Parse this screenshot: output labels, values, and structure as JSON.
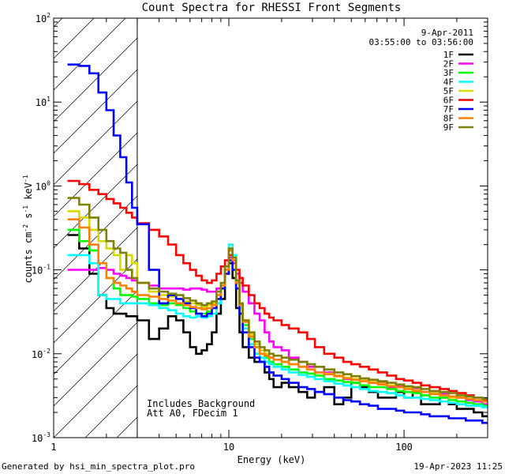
{
  "chart_data": {
    "type": "line",
    "title": "Count Spectra for RHESSI Front Segments",
    "xlabel": "Energy (keV)",
    "ylabel_parts": [
      "counts cm",
      "-2",
      " s",
      "-1",
      " keV",
      "-1"
    ],
    "xscale": "log",
    "yscale": "log",
    "xlim": [
      1,
      300
    ],
    "ylim": [
      0.001,
      100
    ],
    "x_ticks": [
      {
        "value": 1,
        "label": "1"
      },
      {
        "value": 10,
        "label": "10"
      },
      {
        "value": 100,
        "label": "100"
      }
    ],
    "y_ticks": [
      {
        "value": 0.001,
        "base": "10",
        "exp": "-3"
      },
      {
        "value": 0.01,
        "base": "10",
        "exp": "-2"
      },
      {
        "value": 0.1,
        "base": "10",
        "exp": "-1"
      },
      {
        "value": 1,
        "base": "10",
        "exp": "0"
      },
      {
        "value": 10,
        "base": "10",
        "exp": "1"
      },
      {
        "value": 100,
        "base": "10",
        "exp": "2"
      }
    ],
    "date": "9-Apr-2011",
    "time_range": "03:55:00 to 03:56:00",
    "shaded_region": [
      1,
      3
    ],
    "annotations": [
      "Includes Background",
      "Att A0, FDecim 1"
    ],
    "footer_left": "Generated by hsi_min_spectra_plot.pro",
    "footer_right": "19-Apr-2023 11:25",
    "x": [
      1.2,
      1.4,
      1.6,
      1.8,
      2.0,
      2.2,
      2.4,
      2.6,
      2.8,
      3.0,
      3.5,
      4.0,
      4.5,
      5.0,
      5.5,
      6.0,
      6.5,
      7.0,
      7.5,
      8.0,
      8.5,
      9.0,
      9.5,
      10.0,
      10.5,
      11.0,
      11.5,
      12.0,
      13.0,
      14.0,
      15.0,
      16.0,
      17.0,
      18.0,
      20.0,
      22.0,
      25.0,
      28.0,
      31.0,
      35.0,
      40.0,
      45.0,
      50.0,
      56.0,
      63.0,
      71.0,
      80.0,
      90.0,
      100.0,
      112.0,
      125.0,
      140.0,
      160.0,
      180.0,
      200.0,
      225.0,
      250.0,
      280.0
    ],
    "series": [
      {
        "name": "1F",
        "color": "#000000",
        "values": [
          0.26,
          0.18,
          0.09,
          0.05,
          0.035,
          0.03,
          0.03,
          0.028,
          0.028,
          0.025,
          0.015,
          0.02,
          0.028,
          0.025,
          0.018,
          0.012,
          0.01,
          0.011,
          0.013,
          0.018,
          0.03,
          0.045,
          0.09,
          0.12,
          0.08,
          0.035,
          0.018,
          0.012,
          0.009,
          0.008,
          0.008,
          0.006,
          0.005,
          0.004,
          0.0045,
          0.004,
          0.0035,
          0.003,
          0.0035,
          0.004,
          0.0025,
          0.003,
          0.0045,
          0.004,
          0.0035,
          0.003,
          0.003,
          0.0035,
          0.003,
          0.0035,
          0.0025,
          0.0025,
          0.003,
          0.0025,
          0.0022,
          0.0022,
          0.002,
          0.0018
        ]
      },
      {
        "name": "2F",
        "color": "#ff00ff",
        "values": [
          0.1,
          0.1,
          0.1,
          0.105,
          0.1,
          0.09,
          0.085,
          0.08,
          0.075,
          0.07,
          0.065,
          0.06,
          0.06,
          0.06,
          0.058,
          0.06,
          0.06,
          0.058,
          0.055,
          0.055,
          0.06,
          0.065,
          0.09,
          0.14,
          0.12,
          0.09,
          0.07,
          0.055,
          0.04,
          0.03,
          0.025,
          0.018,
          0.014,
          0.012,
          0.011,
          0.009,
          0.008,
          0.007,
          0.007,
          0.006,
          0.0055,
          0.005,
          0.005,
          0.0048,
          0.0045,
          0.0045,
          0.004,
          0.0042,
          0.004,
          0.0038,
          0.0035,
          0.0035,
          0.0033,
          0.003,
          0.003,
          0.0028,
          0.0027,
          0.0025
        ]
      },
      {
        "name": "3F",
        "color": "#00ff00",
        "values": [
          0.3,
          0.22,
          0.17,
          0.12,
          0.08,
          0.06,
          0.05,
          0.05,
          0.048,
          0.045,
          0.04,
          0.038,
          0.04,
          0.038,
          0.035,
          0.032,
          0.03,
          0.03,
          0.032,
          0.035,
          0.045,
          0.06,
          0.1,
          0.18,
          0.14,
          0.07,
          0.035,
          0.022,
          0.015,
          0.012,
          0.01,
          0.009,
          0.008,
          0.0075,
          0.007,
          0.0065,
          0.006,
          0.0058,
          0.0055,
          0.005,
          0.0048,
          0.0046,
          0.0045,
          0.0042,
          0.004,
          0.004,
          0.0038,
          0.0036,
          0.0035,
          0.0034,
          0.0032,
          0.003,
          0.003,
          0.0028,
          0.0027,
          0.0026,
          0.0025,
          0.0024
        ]
      },
      {
        "name": "4F",
        "color": "#00ffff",
        "values": [
          0.15,
          0.15,
          0.12,
          0.05,
          0.045,
          0.045,
          0.04,
          0.04,
          0.04,
          0.04,
          0.038,
          0.035,
          0.033,
          0.03,
          0.028,
          0.027,
          0.028,
          0.027,
          0.028,
          0.03,
          0.04,
          0.06,
          0.1,
          0.2,
          0.15,
          0.07,
          0.035,
          0.02,
          0.013,
          0.01,
          0.009,
          0.008,
          0.0075,
          0.007,
          0.0065,
          0.006,
          0.0056,
          0.0053,
          0.005,
          0.0047,
          0.0044,
          0.0042,
          0.004,
          0.0038,
          0.0036,
          0.0035,
          0.0034,
          0.0032,
          0.003,
          0.003,
          0.0029,
          0.0028,
          0.0027,
          0.0026,
          0.0025,
          0.0024,
          0.0024,
          0.0023
        ]
      },
      {
        "name": "5F",
        "color": "#d9d900",
        "values": [
          0.5,
          0.42,
          0.3,
          0.22,
          0.18,
          0.15,
          0.1,
          0.15,
          0.12,
          0.07,
          0.055,
          0.05,
          0.048,
          0.045,
          0.042,
          0.04,
          0.038,
          0.036,
          0.038,
          0.04,
          0.05,
          0.065,
          0.1,
          0.18,
          0.14,
          0.075,
          0.04,
          0.025,
          0.017,
          0.013,
          0.011,
          0.01,
          0.009,
          0.0085,
          0.008,
          0.0075,
          0.007,
          0.0065,
          0.006,
          0.0058,
          0.0055,
          0.0052,
          0.005,
          0.0048,
          0.0046,
          0.0044,
          0.0042,
          0.004,
          0.0039,
          0.0037,
          0.0035,
          0.0034,
          0.0032,
          0.003,
          0.003,
          0.0029,
          0.0028,
          0.0027
        ]
      },
      {
        "name": "6F",
        "color": "#ff0000",
        "values": [
          1.15,
          1.05,
          0.9,
          0.8,
          0.7,
          0.62,
          0.55,
          0.48,
          0.42,
          0.36,
          0.3,
          0.25,
          0.2,
          0.15,
          0.12,
          0.1,
          0.085,
          0.075,
          0.07,
          0.075,
          0.09,
          0.11,
          0.13,
          0.15,
          0.13,
          0.1,
          0.08,
          0.065,
          0.05,
          0.04,
          0.035,
          0.03,
          0.027,
          0.025,
          0.022,
          0.02,
          0.018,
          0.015,
          0.012,
          0.01,
          0.009,
          0.008,
          0.0075,
          0.007,
          0.0065,
          0.006,
          0.0055,
          0.005,
          0.0048,
          0.0045,
          0.0042,
          0.004,
          0.0038,
          0.0036,
          0.0034,
          0.0032,
          0.003,
          0.0028
        ]
      },
      {
        "name": "7F",
        "color": "#0000ff",
        "values": [
          28,
          27,
          22,
          13,
          8,
          4,
          2.2,
          1.1,
          0.55,
          0.35,
          0.1,
          0.04,
          0.05,
          0.045,
          0.04,
          0.035,
          0.03,
          0.028,
          0.03,
          0.035,
          0.045,
          0.06,
          0.09,
          0.13,
          0.1,
          0.06,
          0.03,
          0.018,
          0.012,
          0.009,
          0.008,
          0.007,
          0.006,
          0.0055,
          0.005,
          0.0045,
          0.004,
          0.0038,
          0.0035,
          0.0033,
          0.003,
          0.0028,
          0.0027,
          0.0025,
          0.0024,
          0.0022,
          0.0022,
          0.0021,
          0.002,
          0.002,
          0.0019,
          0.0018,
          0.0018,
          0.0017,
          0.0017,
          0.0016,
          0.0016,
          0.0015
        ]
      },
      {
        "name": "8F",
        "color": "#ff8000",
        "values": [
          0.4,
          0.32,
          0.2,
          0.12,
          0.08,
          0.07,
          0.065,
          0.06,
          0.055,
          0.05,
          0.048,
          0.045,
          0.043,
          0.04,
          0.038,
          0.036,
          0.035,
          0.034,
          0.035,
          0.038,
          0.05,
          0.065,
          0.1,
          0.17,
          0.13,
          0.07,
          0.038,
          0.024,
          0.016,
          0.012,
          0.01,
          0.0095,
          0.009,
          0.0085,
          0.008,
          0.0075,
          0.007,
          0.0065,
          0.006,
          0.0057,
          0.0054,
          0.0051,
          0.0049,
          0.0047,
          0.0045,
          0.0043,
          0.0041,
          0.004,
          0.0038,
          0.0036,
          0.0035,
          0.0033,
          0.0032,
          0.0031,
          0.003,
          0.0029,
          0.0028,
          0.0027
        ]
      },
      {
        "name": "9F",
        "color": "#808000",
        "values": [
          0.72,
          0.6,
          0.42,
          0.3,
          0.22,
          0.18,
          0.16,
          0.1,
          0.08,
          0.07,
          0.06,
          0.055,
          0.052,
          0.05,
          0.046,
          0.043,
          0.04,
          0.038,
          0.04,
          0.042,
          0.055,
          0.07,
          0.11,
          0.18,
          0.14,
          0.075,
          0.04,
          0.025,
          0.018,
          0.014,
          0.012,
          0.011,
          0.01,
          0.0095,
          0.009,
          0.0085,
          0.008,
          0.0075,
          0.007,
          0.0065,
          0.006,
          0.0057,
          0.0054,
          0.0051,
          0.0049,
          0.0047,
          0.0045,
          0.0043,
          0.0041,
          0.004,
          0.0038,
          0.0036,
          0.0035,
          0.0034,
          0.0032,
          0.0031,
          0.003,
          0.0029
        ]
      }
    ]
  }
}
